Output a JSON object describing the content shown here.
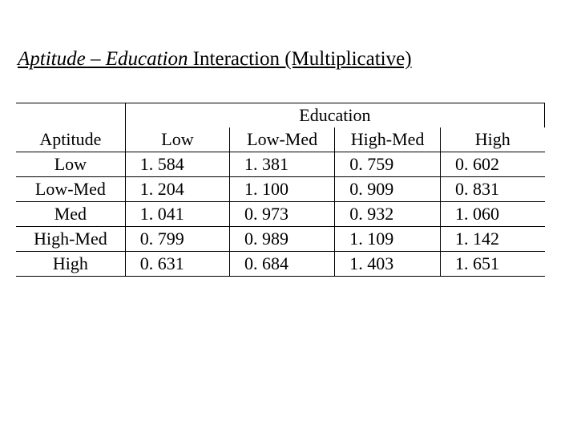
{
  "title": {
    "part1_italic": "Aptitude – Education",
    "part2": " Interaction (Multiplicative)"
  },
  "table": {
    "super_header": "Education",
    "row_header": "Aptitude",
    "col_headers": [
      "Low",
      "Low-Med",
      "High-Med",
      "High"
    ],
    "rows": [
      {
        "label": "Low",
        "values": [
          "1. 584",
          "1. 381",
          "0. 759",
          "0. 602"
        ]
      },
      {
        "label": "Low-Med",
        "values": [
          "1. 204",
          "1. 100",
          "0. 909",
          "0. 831"
        ]
      },
      {
        "label": "Med",
        "values": [
          "1. 041",
          "0. 973",
          "0. 932",
          "1. 060"
        ]
      },
      {
        "label": "High-Med",
        "values": [
          "0. 799",
          "0. 989",
          "1. 109",
          "1. 142"
        ]
      },
      {
        "label": "High",
        "values": [
          "0. 631",
          "0. 684",
          "1. 403",
          "1. 651"
        ]
      }
    ]
  },
  "style": {
    "font_family": "Times New Roman",
    "title_fontsize": 25,
    "table_fontsize": 22,
    "text_color": "#000000",
    "background_color": "#ffffff",
    "border_color": "#000000",
    "border_width": 1.5
  }
}
